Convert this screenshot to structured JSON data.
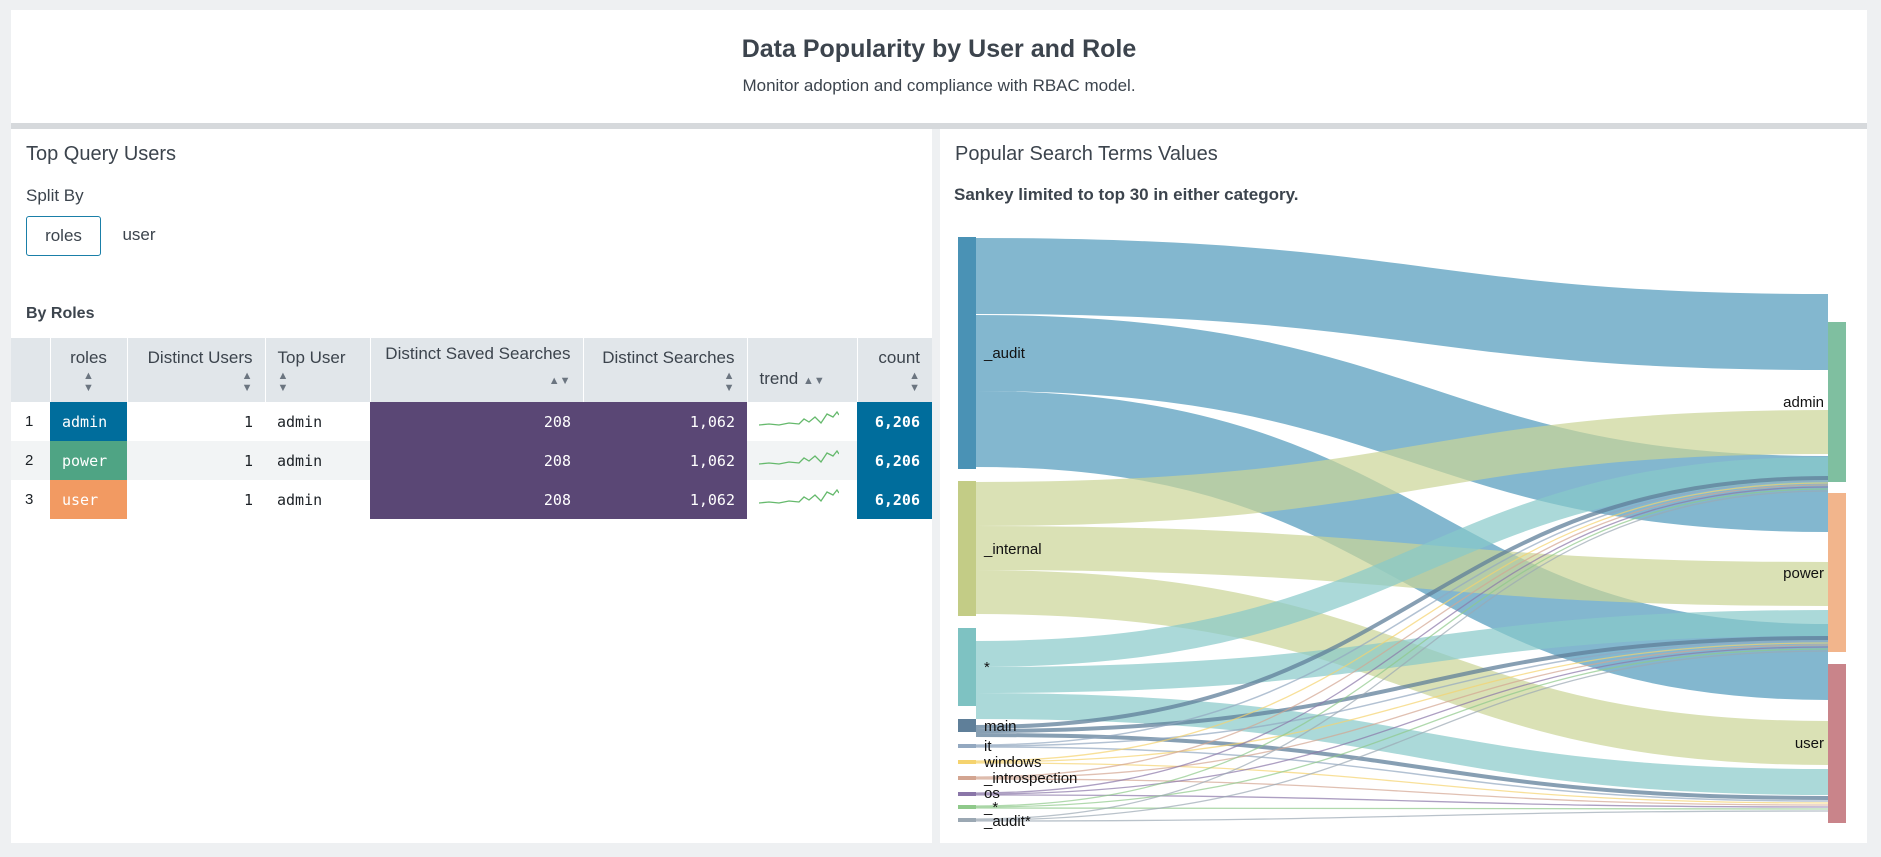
{
  "header": {
    "title": "Data Popularity by User and Role",
    "subtitle": "Monitor adoption and compliance with RBAC model."
  },
  "left_panel": {
    "title": "Top Query Users",
    "split_label": "Split By",
    "split_options": [
      "roles",
      "user"
    ],
    "selected_split": "roles",
    "table_title": "By Roles",
    "columns": [
      "roles",
      "Distinct Users",
      "Top User",
      "Distinct Saved Searches",
      "Distinct Searches",
      "trend",
      "count"
    ],
    "rows": [
      {
        "index": "1",
        "role": "admin",
        "role_color": "#006d9c",
        "distinct_users": "1",
        "top_user": "admin",
        "distinct_saved": "208",
        "distinct_searches": "1,062",
        "count": "6,206"
      },
      {
        "index": "2",
        "role": "power",
        "role_color": "#4fa484",
        "distinct_users": "1",
        "top_user": "admin",
        "distinct_saved": "208",
        "distinct_searches": "1,062",
        "count": "6,206"
      },
      {
        "index": "3",
        "role": "user",
        "role_color": "#f29a62",
        "distinct_users": "1",
        "top_user": "admin",
        "distinct_saved": "208",
        "distinct_searches": "1,062",
        "count": "6,206"
      }
    ]
  },
  "right_panel": {
    "title": "Popular Search Terms Values",
    "note": "Sankey limited to top 30 in either category.",
    "sources": [
      {
        "name": "_audit",
        "color": "#5a9fbf"
      },
      {
        "name": "_internal",
        "color": "#cbd496"
      },
      {
        "name": "*",
        "color": "#87c9c9"
      },
      {
        "name": "main",
        "color": "#5f7f99"
      },
      {
        "name": "it",
        "color": "#93a8c0"
      },
      {
        "name": "windows",
        "color": "#f5d36e"
      },
      {
        "name": "_introspection",
        "color": "#d3a591"
      },
      {
        "name": "os",
        "color": "#8a76a8"
      },
      {
        "name": "_*",
        "color": "#8fc98a"
      },
      {
        "name": "_audit*",
        "color": "#9ba8b3"
      }
    ],
    "targets": [
      {
        "name": "admin",
        "color": "#7fbfa0"
      },
      {
        "name": "power",
        "color": "#f2b58c"
      },
      {
        "name": "user",
        "color": "#c9848a"
      }
    ]
  }
}
